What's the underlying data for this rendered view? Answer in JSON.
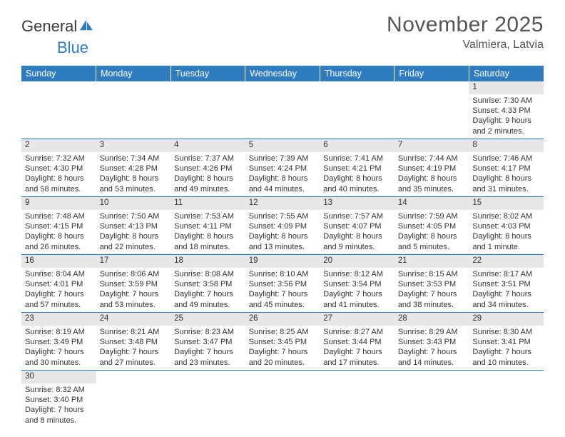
{
  "brand": {
    "part1": "General",
    "part2": "Blue"
  },
  "title": "November 2025",
  "location": "Valmiera, Latvia",
  "colors": {
    "header_bg": "#2f7bbf",
    "header_text": "#ffffff",
    "daynum_bg": "#e7e7e7",
    "row_border": "#2f7bbf",
    "page_bg": "#ffffff",
    "text": "#333333",
    "title_color": "#555555"
  },
  "weekdays": [
    "Sunday",
    "Monday",
    "Tuesday",
    "Wednesday",
    "Thursday",
    "Friday",
    "Saturday"
  ],
  "weeks": [
    [
      {
        "n": "",
        "lines": []
      },
      {
        "n": "",
        "lines": []
      },
      {
        "n": "",
        "lines": []
      },
      {
        "n": "",
        "lines": []
      },
      {
        "n": "",
        "lines": []
      },
      {
        "n": "",
        "lines": []
      },
      {
        "n": "1",
        "lines": [
          "Sunrise: 7:30 AM",
          "Sunset: 4:33 PM",
          "Daylight: 9 hours",
          "and 2 minutes."
        ]
      }
    ],
    [
      {
        "n": "2",
        "lines": [
          "Sunrise: 7:32 AM",
          "Sunset: 4:30 PM",
          "Daylight: 8 hours",
          "and 58 minutes."
        ]
      },
      {
        "n": "3",
        "lines": [
          "Sunrise: 7:34 AM",
          "Sunset: 4:28 PM",
          "Daylight: 8 hours",
          "and 53 minutes."
        ]
      },
      {
        "n": "4",
        "lines": [
          "Sunrise: 7:37 AM",
          "Sunset: 4:26 PM",
          "Daylight: 8 hours",
          "and 49 minutes."
        ]
      },
      {
        "n": "5",
        "lines": [
          "Sunrise: 7:39 AM",
          "Sunset: 4:24 PM",
          "Daylight: 8 hours",
          "and 44 minutes."
        ]
      },
      {
        "n": "6",
        "lines": [
          "Sunrise: 7:41 AM",
          "Sunset: 4:21 PM",
          "Daylight: 8 hours",
          "and 40 minutes."
        ]
      },
      {
        "n": "7",
        "lines": [
          "Sunrise: 7:44 AM",
          "Sunset: 4:19 PM",
          "Daylight: 8 hours",
          "and 35 minutes."
        ]
      },
      {
        "n": "8",
        "lines": [
          "Sunrise: 7:46 AM",
          "Sunset: 4:17 PM",
          "Daylight: 8 hours",
          "and 31 minutes."
        ]
      }
    ],
    [
      {
        "n": "9",
        "lines": [
          "Sunrise: 7:48 AM",
          "Sunset: 4:15 PM",
          "Daylight: 8 hours",
          "and 26 minutes."
        ]
      },
      {
        "n": "10",
        "lines": [
          "Sunrise: 7:50 AM",
          "Sunset: 4:13 PM",
          "Daylight: 8 hours",
          "and 22 minutes."
        ]
      },
      {
        "n": "11",
        "lines": [
          "Sunrise: 7:53 AM",
          "Sunset: 4:11 PM",
          "Daylight: 8 hours",
          "and 18 minutes."
        ]
      },
      {
        "n": "12",
        "lines": [
          "Sunrise: 7:55 AM",
          "Sunset: 4:09 PM",
          "Daylight: 8 hours",
          "and 13 minutes."
        ]
      },
      {
        "n": "13",
        "lines": [
          "Sunrise: 7:57 AM",
          "Sunset: 4:07 PM",
          "Daylight: 8 hours",
          "and 9 minutes."
        ]
      },
      {
        "n": "14",
        "lines": [
          "Sunrise: 7:59 AM",
          "Sunset: 4:05 PM",
          "Daylight: 8 hours",
          "and 5 minutes."
        ]
      },
      {
        "n": "15",
        "lines": [
          "Sunrise: 8:02 AM",
          "Sunset: 4:03 PM",
          "Daylight: 8 hours",
          "and 1 minute."
        ]
      }
    ],
    [
      {
        "n": "16",
        "lines": [
          "Sunrise: 8:04 AM",
          "Sunset: 4:01 PM",
          "Daylight: 7 hours",
          "and 57 minutes."
        ]
      },
      {
        "n": "17",
        "lines": [
          "Sunrise: 8:06 AM",
          "Sunset: 3:59 PM",
          "Daylight: 7 hours",
          "and 53 minutes."
        ]
      },
      {
        "n": "18",
        "lines": [
          "Sunrise: 8:08 AM",
          "Sunset: 3:58 PM",
          "Daylight: 7 hours",
          "and 49 minutes."
        ]
      },
      {
        "n": "19",
        "lines": [
          "Sunrise: 8:10 AM",
          "Sunset: 3:56 PM",
          "Daylight: 7 hours",
          "and 45 minutes."
        ]
      },
      {
        "n": "20",
        "lines": [
          "Sunrise: 8:12 AM",
          "Sunset: 3:54 PM",
          "Daylight: 7 hours",
          "and 41 minutes."
        ]
      },
      {
        "n": "21",
        "lines": [
          "Sunrise: 8:15 AM",
          "Sunset: 3:53 PM",
          "Daylight: 7 hours",
          "and 38 minutes."
        ]
      },
      {
        "n": "22",
        "lines": [
          "Sunrise: 8:17 AM",
          "Sunset: 3:51 PM",
          "Daylight: 7 hours",
          "and 34 minutes."
        ]
      }
    ],
    [
      {
        "n": "23",
        "lines": [
          "Sunrise: 8:19 AM",
          "Sunset: 3:49 PM",
          "Daylight: 7 hours",
          "and 30 minutes."
        ]
      },
      {
        "n": "24",
        "lines": [
          "Sunrise: 8:21 AM",
          "Sunset: 3:48 PM",
          "Daylight: 7 hours",
          "and 27 minutes."
        ]
      },
      {
        "n": "25",
        "lines": [
          "Sunrise: 8:23 AM",
          "Sunset: 3:47 PM",
          "Daylight: 7 hours",
          "and 23 minutes."
        ]
      },
      {
        "n": "26",
        "lines": [
          "Sunrise: 8:25 AM",
          "Sunset: 3:45 PM",
          "Daylight: 7 hours",
          "and 20 minutes."
        ]
      },
      {
        "n": "27",
        "lines": [
          "Sunrise: 8:27 AM",
          "Sunset: 3:44 PM",
          "Daylight: 7 hours",
          "and 17 minutes."
        ]
      },
      {
        "n": "28",
        "lines": [
          "Sunrise: 8:29 AM",
          "Sunset: 3:43 PM",
          "Daylight: 7 hours",
          "and 14 minutes."
        ]
      },
      {
        "n": "29",
        "lines": [
          "Sunrise: 8:30 AM",
          "Sunset: 3:41 PM",
          "Daylight: 7 hours",
          "and 10 minutes."
        ]
      }
    ],
    [
      {
        "n": "30",
        "lines": [
          "Sunrise: 8:32 AM",
          "Sunset: 3:40 PM",
          "Daylight: 7 hours",
          "and 8 minutes."
        ]
      },
      {
        "n": "",
        "lines": []
      },
      {
        "n": "",
        "lines": []
      },
      {
        "n": "",
        "lines": []
      },
      {
        "n": "",
        "lines": []
      },
      {
        "n": "",
        "lines": []
      },
      {
        "n": "",
        "lines": []
      }
    ]
  ]
}
